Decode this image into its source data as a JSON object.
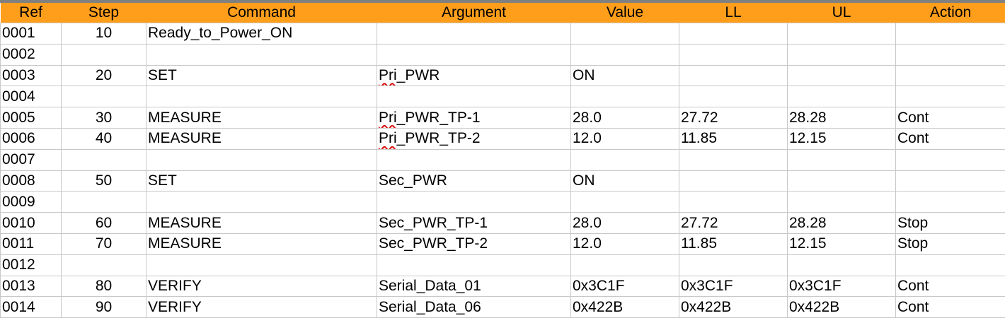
{
  "headers": [
    "Ref",
    "Step",
    "Command",
    "Argument",
    "Value",
    "LL",
    "UL",
    "Action"
  ],
  "rows": [
    {
      "ref": "0001",
      "step": "10",
      "command": "Ready_to_Power_ON",
      "argument": "",
      "value": "",
      "ll": "",
      "ul": "",
      "action": ""
    },
    {
      "ref": "0002",
      "step": "",
      "command": "",
      "argument": "",
      "value": "",
      "ll": "",
      "ul": "",
      "action": ""
    },
    {
      "ref": "0003",
      "step": "20",
      "command": "SET",
      "argument": "Pri_PWR",
      "value": "ON",
      "ll": "",
      "ul": "",
      "action": ""
    },
    {
      "ref": "0004",
      "step": "",
      "command": "",
      "argument": "",
      "value": "",
      "ll": "",
      "ul": "",
      "action": ""
    },
    {
      "ref": "0005",
      "step": "30",
      "command": "MEASURE",
      "argument": "Pri_PWR_TP-1",
      "value": "28.0",
      "ll": "27.72",
      "ul": "28.28",
      "action": "Cont"
    },
    {
      "ref": "0006",
      "step": "40",
      "command": "MEASURE",
      "argument": "Pri_PWR_TP-2",
      "value": "12.0",
      "ll": "11.85",
      "ul": "12.15",
      "action": "Cont"
    },
    {
      "ref": "0007",
      "step": "",
      "command": "",
      "argument": "",
      "value": "",
      "ll": "",
      "ul": "",
      "action": ""
    },
    {
      "ref": "0008",
      "step": "50",
      "command": "SET",
      "argument": "Sec_PWR",
      "value": "ON",
      "ll": "",
      "ul": "",
      "action": ""
    },
    {
      "ref": "0009",
      "step": "",
      "command": "",
      "argument": "",
      "value": "",
      "ll": "",
      "ul": "",
      "action": ""
    },
    {
      "ref": "0010",
      "step": "60",
      "command": "MEASURE",
      "argument": "Sec_PWR_TP-1",
      "value": "28.0",
      "ll": "27.72",
      "ul": "28.28",
      "action": "Stop"
    },
    {
      "ref": "0011",
      "step": "70",
      "command": "MEASURE",
      "argument": "Sec_PWR_TP-2",
      "value": "12.0",
      "ll": "11.85",
      "ul": "12.15",
      "action": "Stop"
    },
    {
      "ref": "0012",
      "step": "",
      "command": "",
      "argument": "",
      "value": "",
      "ll": "",
      "ul": "",
      "action": ""
    },
    {
      "ref": "0013",
      "step": "80",
      "command": "VERIFY",
      "argument": "Serial_Data_01",
      "value": "0x3C1F",
      "ll": "0x3C1F",
      "ul": "0x3C1F",
      "action": "Cont"
    },
    {
      "ref": "0014",
      "step": "90",
      "command": "VERIFY",
      "argument": "Serial_Data_06",
      "value": "0x422B",
      "ll": "0x422B",
      "ul": "0x422B",
      "action": "Cont"
    }
  ],
  "colors": {
    "header_bg": "#FF9E1B",
    "grid": "#c8c8c8",
    "spellcheck": "#d11"
  }
}
